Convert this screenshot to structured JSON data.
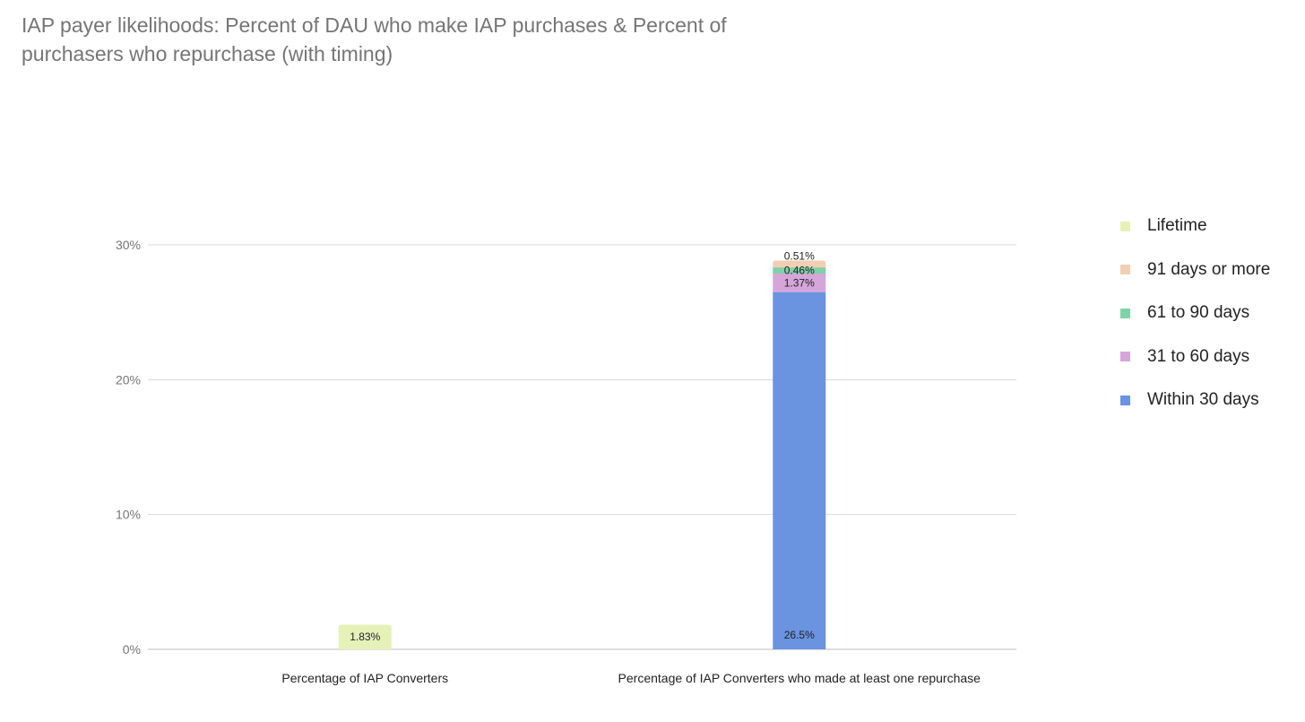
{
  "chart_data": {
    "type": "bar",
    "stacked": true,
    "title_lines": [
      "IAP payer likelihoods: Percent of DAU who make IAP purchases & Percent of",
      "purchasers who repurchase (with timing)"
    ],
    "categories": [
      "Percentage of IAP Converters",
      "Percentage of IAP Converters who made at least one repurchase"
    ],
    "series": [
      {
        "name": "Within 30 days",
        "color": "#6A93E0",
        "values": [
          null,
          26.5
        ],
        "labels": [
          "",
          "26.5%"
        ]
      },
      {
        "name": "31 to 60 days",
        "color": "#D6A6DA",
        "values": [
          null,
          1.37
        ],
        "labels": [
          "",
          "1.37%"
        ]
      },
      {
        "name": "61 to 90 days",
        "color": "#7FD1A8",
        "values": [
          null,
          0.46
        ],
        "labels": [
          "",
          "0.46%"
        ]
      },
      {
        "name": "91 days or more",
        "color": "#F2CFB3",
        "values": [
          null,
          0.51
        ],
        "labels": [
          "",
          "0.51%"
        ]
      },
      {
        "name": "Lifetime",
        "color": "#E6F1B8",
        "values": [
          1.83,
          null
        ],
        "labels": [
          "1.83%",
          ""
        ]
      }
    ],
    "legend_order": [
      "Lifetime",
      "91 days or more",
      "61 to 90 days",
      "31 to 60 days",
      "Within 30 days"
    ],
    "y_ticks": [
      0,
      10,
      20,
      30
    ],
    "y_tick_labels": [
      "0%",
      "10%",
      "20%",
      "30%"
    ],
    "ylim": [
      0,
      30
    ],
    "grid": true,
    "legend_position": "right",
    "xlabel": "",
    "ylabel": ""
  }
}
